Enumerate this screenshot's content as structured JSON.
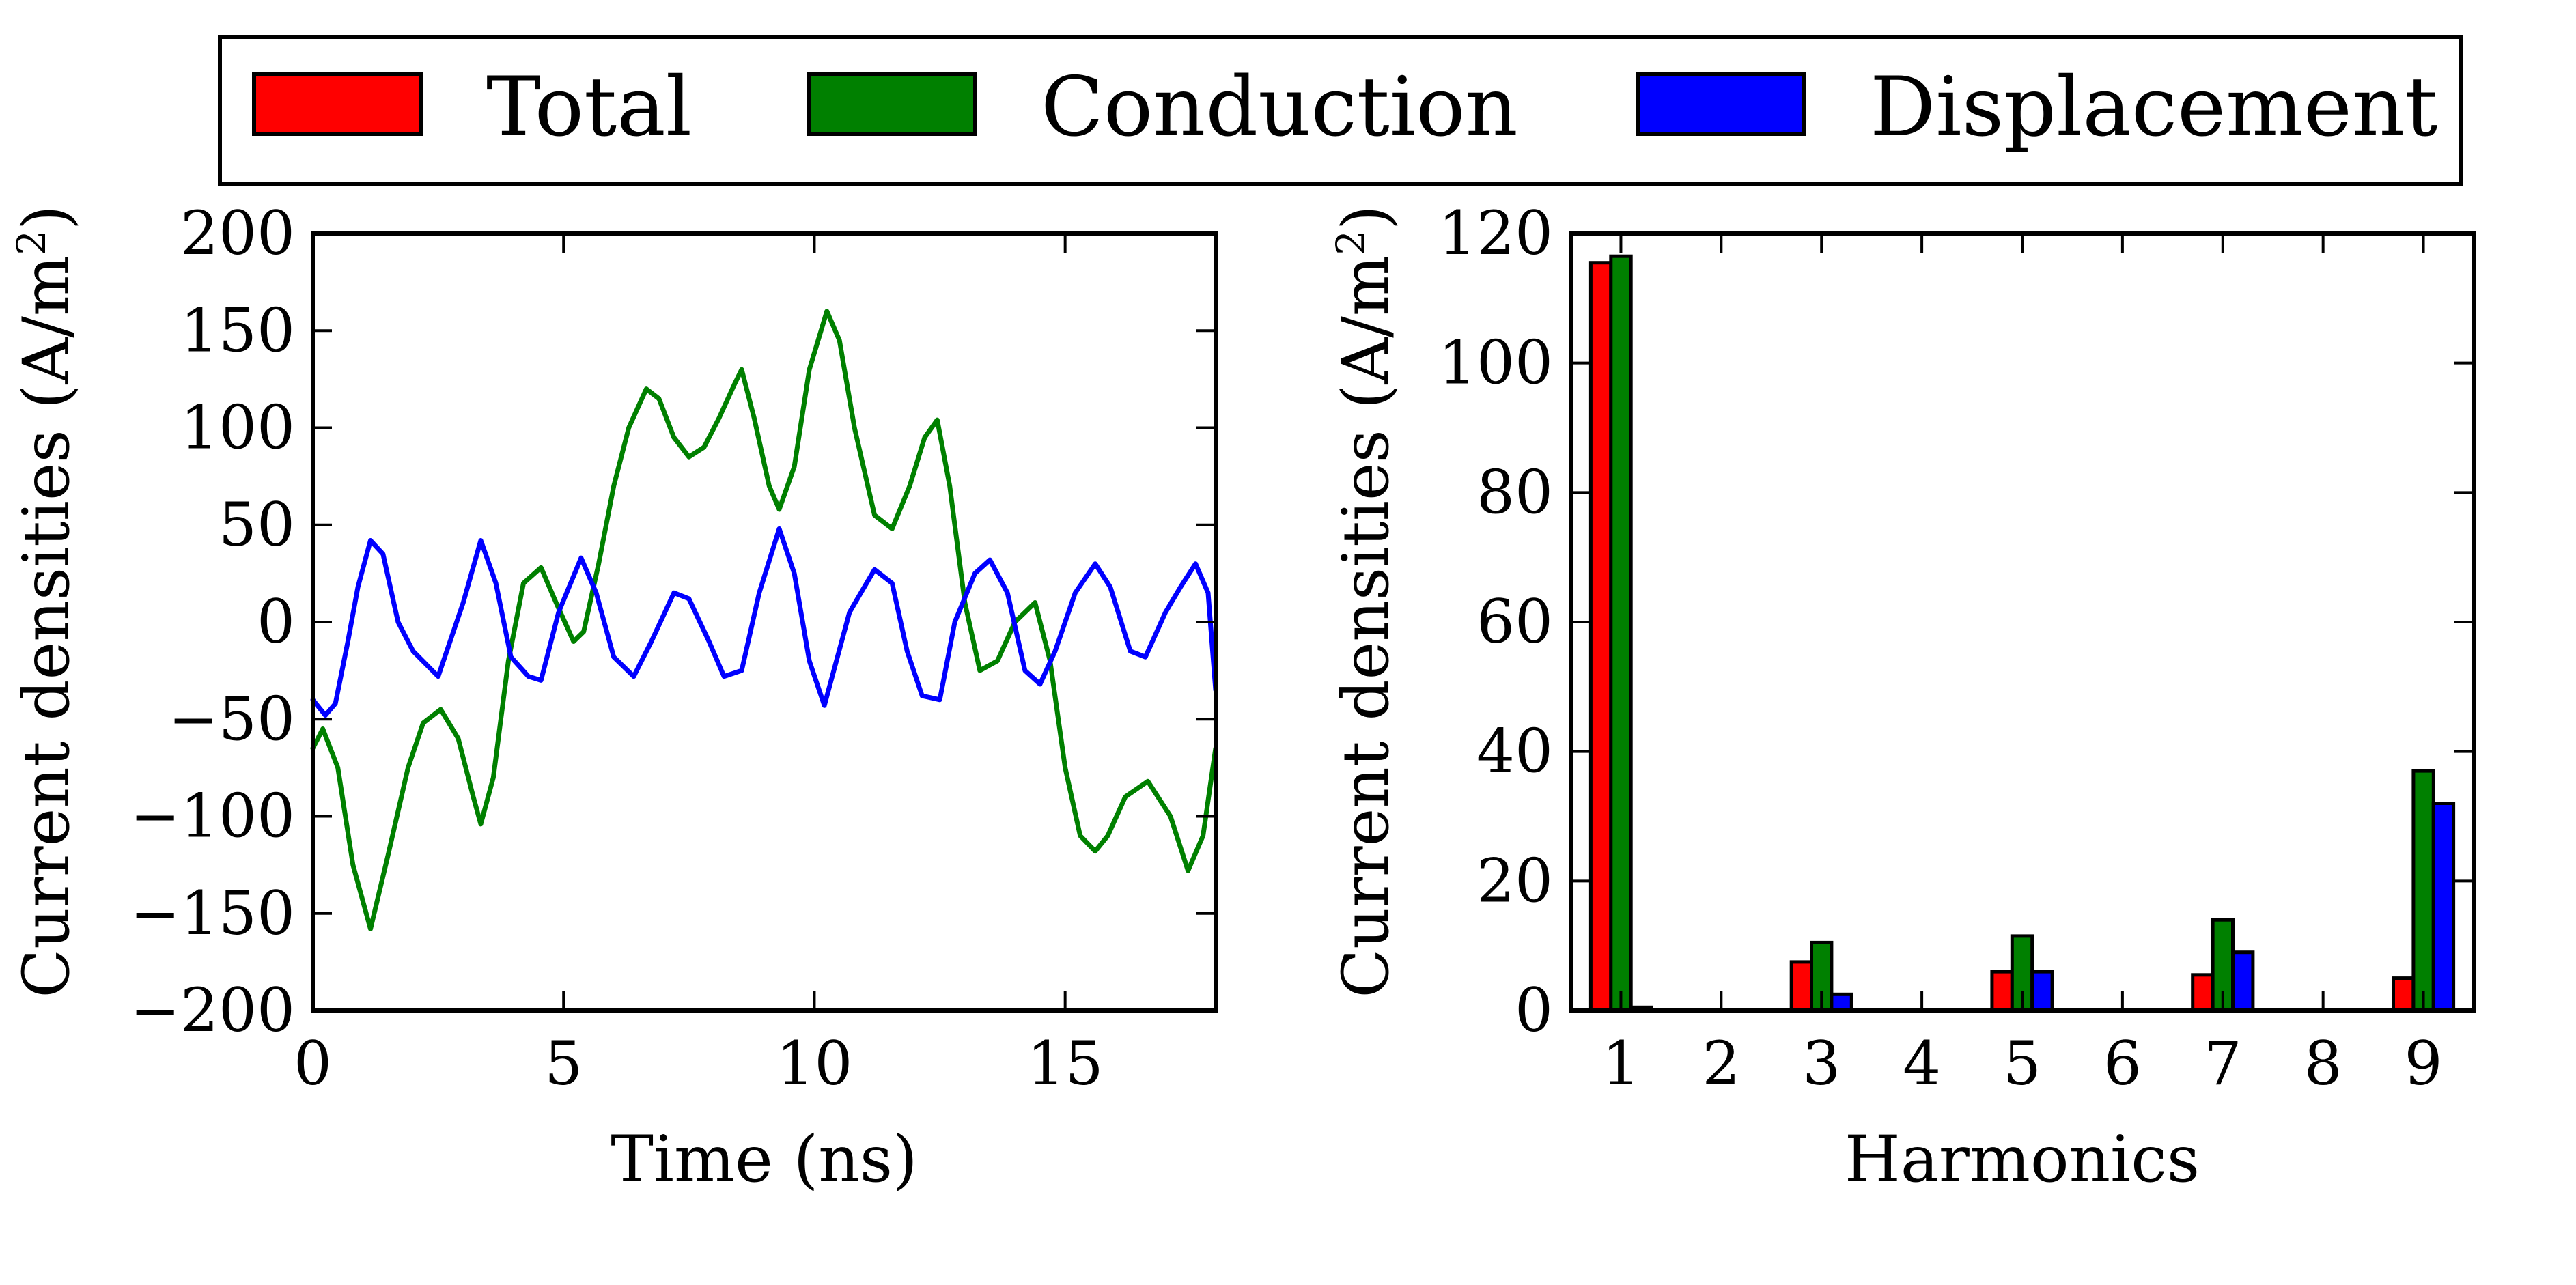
{
  "legend": [
    {
      "label": "Total",
      "color": "#ff0000"
    },
    {
      "label": "Conduction",
      "color": "#008000"
    },
    {
      "label": "Displacement",
      "color": "#0000ff"
    }
  ],
  "chart_data": [
    {
      "type": "line",
      "title": "",
      "xlabel": "Time (ns)",
      "ylabel": "Current densities (A/m²)",
      "ylabel_base": "Current densities (A/m",
      "ylabel_sup": "2",
      "ylabel_close": ")",
      "xlim": [
        0,
        18
      ],
      "ylim": [
        -200,
        200
      ],
      "xticks": [
        0,
        5,
        10,
        15
      ],
      "xtick_labels": [
        "0",
        "5",
        "10",
        "15"
      ],
      "yticks": [
        -200,
        -150,
        -100,
        -50,
        0,
        50,
        100,
        150,
        200
      ],
      "ytick_labels": [
        "−200",
        "−150",
        "−100",
        "−50",
        "0",
        "50",
        "100",
        "150",
        "200"
      ],
      "grid": false,
      "series": [
        {
          "name": "Conduction",
          "color": "#008000",
          "x": [
            0,
            0.2,
            0.5,
            0.8,
            1.15,
            1.5,
            1.9,
            2.2,
            2.55,
            2.9,
            3.2,
            3.35,
            3.6,
            3.9,
            4.2,
            4.55,
            4.85,
            5.2,
            5.4,
            5.7,
            6.0,
            6.3,
            6.65,
            6.9,
            7.2,
            7.5,
            7.8,
            8.1,
            8.4,
            8.55,
            8.8,
            9.1,
            9.3,
            9.6,
            9.9,
            10.25,
            10.5,
            10.8,
            11.2,
            11.55,
            11.9,
            12.2,
            12.45,
            12.7,
            13.0,
            13.3,
            13.65,
            14.0,
            14.4,
            14.7,
            15.0,
            15.3,
            15.6,
            15.85,
            16.2,
            16.65,
            17.1,
            17.45,
            17.75,
            18.0
          ],
          "y": [
            -65,
            -55,
            -75,
            -125,
            -158,
            -120,
            -75,
            -52,
            -45,
            -60,
            -90,
            -104,
            -80,
            -20,
            20,
            28,
            10,
            -10,
            -5,
            30,
            70,
            100,
            120,
            115,
            95,
            85,
            90,
            105,
            122,
            130,
            105,
            70,
            58,
            80,
            130,
            160,
            145,
            100,
            55,
            48,
            70,
            95,
            104,
            70,
            10,
            -25,
            -20,
            0,
            10,
            -20,
            -75,
            -110,
            -118,
            -110,
            -90,
            -82,
            -100,
            -128,
            -110,
            -65
          ]
        },
        {
          "name": "Displacement",
          "color": "#0000ff",
          "x": [
            0,
            0.25,
            0.45,
            0.7,
            0.9,
            1.15,
            1.4,
            1.7,
            2.0,
            2.5,
            3.0,
            3.35,
            3.65,
            3.95,
            4.3,
            4.55,
            4.9,
            5.35,
            5.65,
            6.0,
            6.4,
            6.75,
            7.2,
            7.5,
            7.9,
            8.2,
            8.55,
            8.9,
            9.3,
            9.6,
            9.9,
            10.2,
            10.7,
            11.2,
            11.55,
            11.85,
            12.15,
            12.5,
            12.8,
            13.2,
            13.5,
            13.85,
            14.2,
            14.5,
            14.8,
            15.2,
            15.6,
            15.9,
            16.3,
            16.6,
            17.0,
            17.3,
            17.6,
            17.85,
            18.0
          ],
          "y": [
            -40,
            -48,
            -42,
            -10,
            18,
            42,
            35,
            0,
            -15,
            -28,
            10,
            42,
            20,
            -18,
            -28,
            -30,
            5,
            33,
            15,
            -18,
            -28,
            -10,
            15,
            12,
            -10,
            -28,
            -25,
            15,
            48,
            25,
            -20,
            -43,
            5,
            27,
            20,
            -15,
            -38,
            -40,
            0,
            25,
            32,
            15,
            -25,
            -32,
            -15,
            15,
            30,
            18,
            -15,
            -18,
            5,
            18,
            30,
            15,
            -35
          ]
        }
      ]
    },
    {
      "type": "bar",
      "title": "",
      "xlabel": "Harmonics",
      "ylabel": "Current densities (A/m²)",
      "ylabel_base": "Current densities (A/m",
      "ylabel_sup": "2",
      "ylabel_close": ")",
      "categories": [
        1,
        2,
        3,
        4,
        5,
        6,
        7,
        8,
        9
      ],
      "xtick_labels": [
        "1",
        "2",
        "3",
        "4",
        "5",
        "6",
        "7",
        "8",
        "9"
      ],
      "xlim": [
        0.5,
        9.5
      ],
      "ylim": [
        0,
        120
      ],
      "yticks": [
        0,
        20,
        40,
        60,
        80,
        100,
        120
      ],
      "ytick_labels": [
        "0",
        "20",
        "40",
        "60",
        "80",
        "100",
        "120"
      ],
      "grid": false,
      "series": [
        {
          "name": "Total",
          "color": "#ff0000",
          "values": [
            115.5,
            0,
            7.5,
            0,
            6,
            0,
            5.5,
            0,
            5
          ]
        },
        {
          "name": "Conduction",
          "color": "#008000",
          "values": [
            116.5,
            0,
            10.5,
            0,
            11.5,
            0,
            14,
            0,
            37
          ]
        },
        {
          "name": "Displacement",
          "color": "#0000ff",
          "values": [
            0.5,
            0,
            2.5,
            0,
            6,
            0,
            9,
            0,
            32
          ]
        }
      ]
    }
  ]
}
